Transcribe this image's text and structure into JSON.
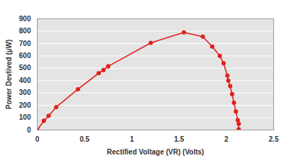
{
  "chart_data": {
    "type": "line",
    "x_label": "Rectified Voltage (VR) (Volts)",
    "y_label": "Power Devlived (µW)",
    "x": [
      0,
      0.07,
      0.12,
      0.2,
      0.43,
      0.65,
      0.7,
      0.75,
      1.2,
      1.55,
      1.75,
      1.85,
      1.93,
      1.97,
      2.01,
      2.02,
      2.04,
      2.06,
      2.08,
      2.1,
      2.12,
      2.13,
      2.13
    ],
    "series": [
      {
        "name": "Power Devlived (µW)",
        "color": "#e0201b",
        "marker": "circle",
        "line_style": "solid",
        "values": [
          0,
          75,
          115,
          185,
          330,
          460,
          485,
          515,
          705,
          790,
          755,
          675,
          600,
          540,
          440,
          400,
          355,
          290,
          220,
          150,
          80,
          50,
          5
        ]
      }
    ],
    "xlim": [
      0,
      2.5
    ],
    "xticks": [
      0,
      0.5,
      1,
      1.5,
      2,
      2.5
    ],
    "ylim": [
      0,
      900
    ],
    "yticks": [
      0,
      100,
      200,
      300,
      400,
      500,
      600,
      700,
      800,
      900
    ],
    "grid": "y"
  }
}
